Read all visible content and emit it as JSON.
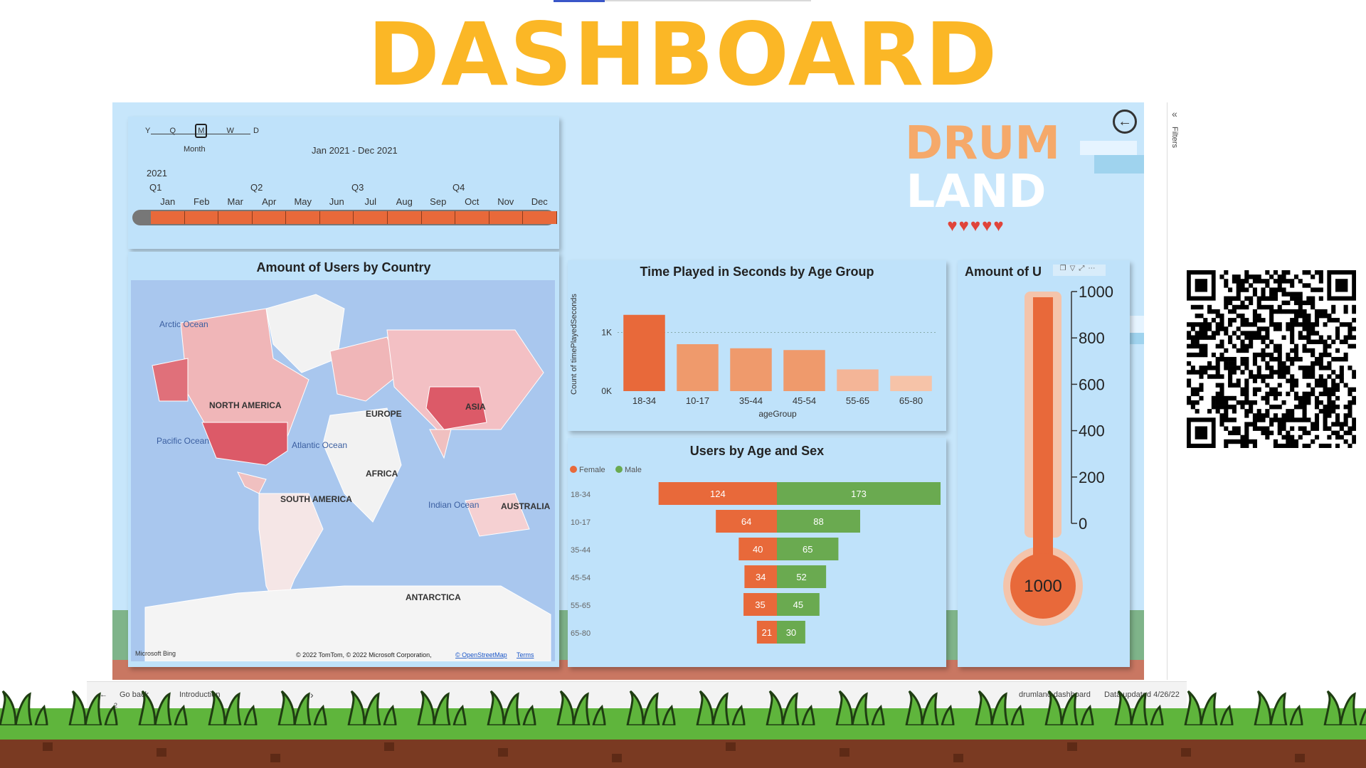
{
  "page": {
    "title": "DASHBOARD"
  },
  "logo": {
    "line1": "DRUM",
    "line2": "LAND"
  },
  "timeline": {
    "granularity_options": [
      "Y",
      "Q",
      "M",
      "W",
      "D"
    ],
    "selected_granularity_label": "Month",
    "range_label": "Jan 2021 - Dec 2021",
    "year": "2021",
    "quarters": [
      "Q1",
      "Q2",
      "Q3",
      "Q4"
    ],
    "months": [
      "Jan",
      "Feb",
      "Mar",
      "Apr",
      "May",
      "Jun",
      "Jul",
      "Aug",
      "Sep",
      "Oct",
      "Nov",
      "Dec"
    ]
  },
  "map": {
    "title": "Amount of Users by Country",
    "labels": [
      "Arctic Ocean",
      "NORTH AMERICA",
      "EUROPE",
      "ASIA",
      "Pacific Ocean",
      "Atlantic Ocean",
      "AFRICA",
      "SOUTH AMERICA",
      "Indian Ocean",
      "AUSTRALIA",
      "ANTARCTICA"
    ],
    "attribution": "© 2022 TomTom, © 2022 Microsoft Corporation,",
    "osm_link": "© OpenStreetMap",
    "terms_link": "Terms",
    "provider": "Microsoft Bing"
  },
  "time_chart": {
    "title": "Time Played in Seconds by Age Group",
    "ylabel": "Count of timePlayedSeconds",
    "xlabel": "ageGroup",
    "yticks": [
      "1K",
      "0K"
    ]
  },
  "pyramid_chart": {
    "title": "Users by Age and Sex",
    "legend": [
      "Female",
      "Male"
    ]
  },
  "thermo": {
    "title": "Amount of U",
    "value_label": "1000",
    "ticks": [
      "1000",
      "800",
      "600",
      "400",
      "200",
      "0"
    ]
  },
  "rightpane": {
    "filters_label": "Filters"
  },
  "footer": {
    "go_back": "Go back",
    "page_name": "Introduction",
    "page_num": "2",
    "report_name": "drumland dashboard",
    "data_updated": "Data updated 4/26/22"
  },
  "colors": {
    "accent": "#fbb726",
    "orange": "#e8693a",
    "green": "#6aaa50",
    "light_orange": "#f0a57e"
  },
  "chart_data": [
    {
      "type": "bar",
      "title": "Time Played in Seconds by Age Group",
      "xlabel": "ageGroup",
      "ylabel": "Count of timePlayedSeconds",
      "categories": [
        "18-34",
        "10-17",
        "35-44",
        "45-54",
        "55-65",
        "65-80"
      ],
      "values": [
        1300,
        800,
        730,
        700,
        370,
        260
      ],
      "ylim": [
        0,
        1600
      ]
    },
    {
      "type": "bar",
      "title": "Users by Age and Sex",
      "categories": [
        "18-34",
        "10-17",
        "35-44",
        "45-54",
        "55-65",
        "65-80"
      ],
      "series": [
        {
          "name": "Female",
          "values": [
            124,
            64,
            40,
            34,
            35,
            21
          ]
        },
        {
          "name": "Male",
          "values": [
            173,
            88,
            65,
            52,
            45,
            30
          ]
        }
      ]
    },
    {
      "type": "bar",
      "title": "Amount of U",
      "values": [
        1000
      ],
      "ylim": [
        0,
        1000
      ],
      "yticks": [
        0,
        200,
        400,
        600,
        800,
        1000
      ]
    }
  ]
}
